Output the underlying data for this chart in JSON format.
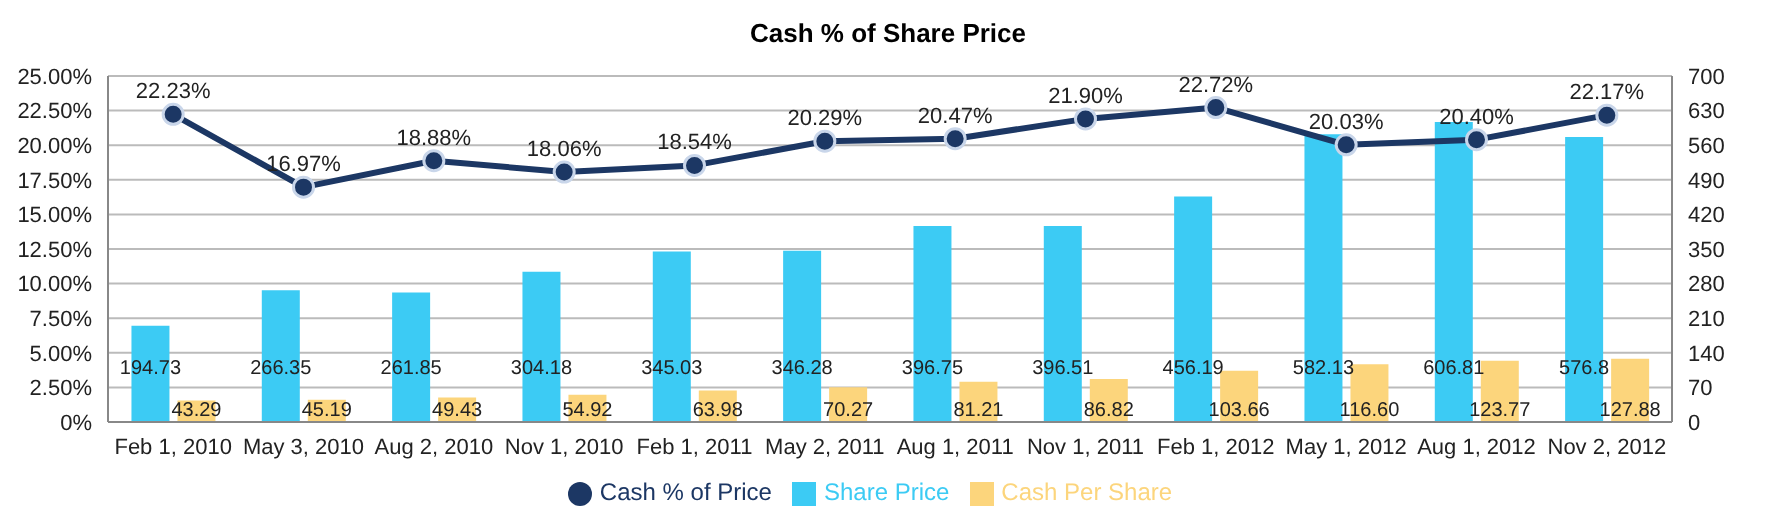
{
  "chart_data": {
    "type": "bar",
    "title": "Cash % of Share Price",
    "categories": [
      "Feb 1, 2010",
      "May 3, 2010",
      "Aug 2, 2010",
      "Nov 1, 2010",
      "Feb 1, 2011",
      "May 2, 2011",
      "Aug 1, 2011",
      "Nov 1, 2011",
      "Feb 1, 2012",
      "May 1, 2012",
      "Aug 1, 2012",
      "Nov 2, 2012"
    ],
    "series": [
      {
        "name": "Cash % of Price",
        "type": "line",
        "color": "#1c3764",
        "marker": "circle",
        "values": [
          22.23,
          16.97,
          18.88,
          18.06,
          18.54,
          20.29,
          20.47,
          21.9,
          22.72,
          20.03,
          20.4,
          22.17
        ],
        "value_labels": [
          "22.23%",
          "16.97%",
          "18.88%",
          "18.06%",
          "18.54%",
          "20.29%",
          "20.47%",
          "21.90%",
          "22.72%",
          "20.03%",
          "20.40%",
          "22.17%"
        ]
      },
      {
        "name": "Share Price",
        "axis": "y2",
        "color": "#3ccbf4",
        "values": [
          194.73,
          266.35,
          261.85,
          304.18,
          345.03,
          346.28,
          396.75,
          396.51,
          456.19,
          582.13,
          606.81,
          576.8
        ],
        "value_labels": [
          "194.73",
          "266.35",
          "261.85",
          "304.18",
          "345.03",
          "346.28",
          "396.75",
          "396.51",
          "456.19",
          "582.13",
          "606.81",
          "576.8"
        ]
      },
      {
        "name": "Cash Per Share",
        "axis": "y2",
        "color": "#fcd57c",
        "values": [
          43.29,
          45.19,
          49.43,
          54.92,
          63.98,
          70.27,
          81.21,
          86.82,
          103.66,
          116.6,
          123.77,
          127.88
        ],
        "value_labels": [
          "43.29",
          "45.19",
          "49.43",
          "54.92",
          "63.98",
          "70.27",
          "81.21",
          "86.82",
          "103.66",
          "116.60",
          "123.77",
          "127.88"
        ]
      }
    ],
    "ylim": [
      0,
      25
    ],
    "yticks": [
      {
        "value": 0,
        "label": "0%"
      },
      {
        "value": 2.5,
        "label": "2.50%"
      },
      {
        "value": 5,
        "label": "5.00%"
      },
      {
        "value": 7.5,
        "label": "7.50%"
      },
      {
        "value": 10,
        "label": "10.00%"
      },
      {
        "value": 12.5,
        "label": "12.50%"
      },
      {
        "value": 15,
        "label": "15.00%"
      },
      {
        "value": 17.5,
        "label": "17.50%"
      },
      {
        "value": 20,
        "label": "20.00%"
      },
      {
        "value": 22.5,
        "label": "22.50%"
      },
      {
        "value": 25,
        "label": "25.00%"
      }
    ],
    "y2lim": [
      0,
      700
    ],
    "y2ticks": [
      0,
      70,
      140,
      210,
      280,
      350,
      420,
      490,
      560,
      630,
      700
    ],
    "grid": "y",
    "legend": "bottom"
  }
}
